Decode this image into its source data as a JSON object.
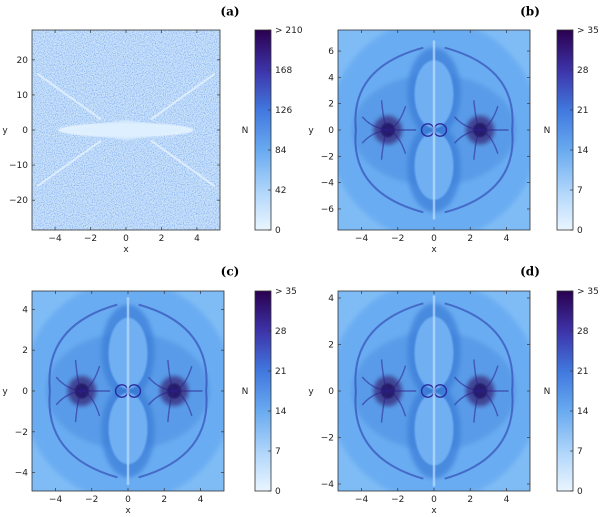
{
  "chart_data": [
    {
      "type": "heatmap",
      "panel_label": "(a)",
      "xlabel": "x",
      "ylabel": "y",
      "colorbar_label": "N",
      "xlim": [
        -5.3,
        5.3
      ],
      "ylim": [
        -28.5,
        28.5
      ],
      "xticks": [
        -4,
        -2,
        0,
        2,
        4
      ],
      "yticks": [
        -20,
        -10,
        0,
        10,
        20
      ],
      "colorbar_ticks": [
        "0",
        "42",
        "84",
        "126",
        "168",
        "> 210"
      ],
      "colorbar_max": 210,
      "colors": {
        "low": "#e9f5ff",
        "mid": "#4f9ae8",
        "high": "#2a0050"
      }
    },
    {
      "type": "heatmap",
      "panel_label": "(b)",
      "xlabel": "x",
      "ylabel": "y",
      "colorbar_label": "N",
      "xlim": [
        -5.3,
        5.3
      ],
      "ylim": [
        -7.6,
        7.6
      ],
      "xticks": [
        -4,
        -2,
        0,
        2,
        4
      ],
      "yticks": [
        -6,
        -4,
        -2,
        0,
        2,
        4,
        6
      ],
      "colorbar_ticks": [
        "0",
        "7",
        "14",
        "21",
        "28",
        "> 35"
      ],
      "colorbar_max": 35,
      "colors": {
        "low": "#e9f5ff",
        "mid": "#4f9ae8",
        "high": "#2a0050"
      }
    },
    {
      "type": "heatmap",
      "panel_label": "(c)",
      "xlabel": "x",
      "ylabel": "y",
      "colorbar_label": "N",
      "xlim": [
        -5.3,
        5.3
      ],
      "ylim": [
        -4.9,
        4.9
      ],
      "xticks": [
        -4,
        -2,
        0,
        2,
        4
      ],
      "yticks": [
        -4,
        -2,
        0,
        2,
        4
      ],
      "colorbar_ticks": [
        "0",
        "7",
        "14",
        "21",
        "28",
        "> 35"
      ],
      "colorbar_max": 35,
      "colors": {
        "low": "#e9f5ff",
        "mid": "#4f9ae8",
        "high": "#2a0050"
      }
    },
    {
      "type": "heatmap",
      "panel_label": "(d)",
      "xlabel": "x",
      "ylabel": "y",
      "colorbar_label": "N",
      "xlim": [
        -5.3,
        5.3
      ],
      "ylim": [
        -4.3,
        4.3
      ],
      "xticks": [
        -4,
        -2,
        0,
        2,
        4
      ],
      "yticks": [
        -4,
        -2,
        0,
        2,
        4
      ],
      "colorbar_ticks": [
        "0",
        "7",
        "14",
        "21",
        "28",
        "> 35"
      ],
      "colorbar_max": 35,
      "colors": {
        "low": "#e9f5ff",
        "mid": "#4f9ae8",
        "high": "#2a0050"
      }
    }
  ]
}
